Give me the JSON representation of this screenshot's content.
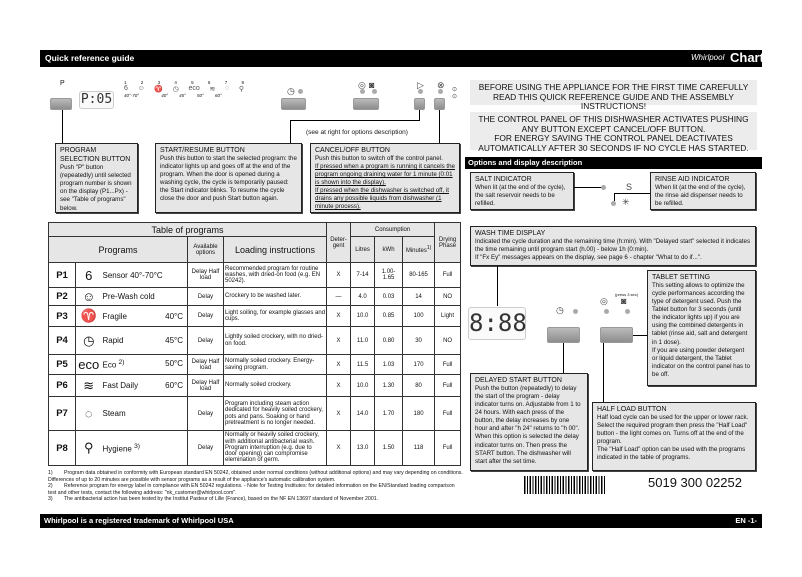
{
  "header": {
    "title": "Quick reference guide",
    "brand": "Whirlpool",
    "chart_label": "Chart"
  },
  "panel": {
    "p_label": "P",
    "display_left": "P:05",
    "program_numbers": [
      "1",
      "2",
      "3",
      "4",
      "5",
      "6",
      "7",
      "8"
    ],
    "temps": [
      "40°-70°",
      "",
      "40°",
      "45°",
      "50°",
      "60°",
      "",
      ""
    ],
    "see_right": "(see at right for options description)",
    "display_right": "8:88",
    "press_3sec": "(press 3 sec)"
  },
  "callouts": {
    "program_selection": {
      "title": "PROGRAM SELECTION BUTTON",
      "text": "Push \"P\" button (repeatedly) until selected program number is shown on the display (P1...Px) - see \"Table of programs\" below."
    },
    "start_resume": {
      "title": "START/RESUME BUTTON",
      "text": "Push this button to start the selected program: the indicator lights up and goes off at the end of the program. When the door is opened during a washing cycle, the cycle is temporarily paused: the Start indicator blinks. To resume the cycle close the door and push Start button again."
    },
    "cancel_off": {
      "title": "CANCEL/OFF BUTTON",
      "text": "Push this button to switch off the control panel.",
      "u1": "If pressed when a program is running it cancels the program ongoing draining water for 1 minute (0:01 is shown into the display).",
      "u2": "If pressed when the dishwasher is switched off, it drains any possible liquids from dishwasher (1 minute process)."
    }
  },
  "table": {
    "title": "Table of programs",
    "headers": {
      "programs": "Programs",
      "options": "Available options",
      "loading": "Loading instructions",
      "detergent": "Deter-gent",
      "consumption": "Consumption",
      "litres": "Litres",
      "kwh": "kWh",
      "minutes": "Minutes",
      "minutes_note": "1)",
      "drying": "Drying Phase"
    },
    "rows": [
      {
        "id": "P1",
        "icon": "sensor-6th-icon",
        "name": "Sensor 40°-70°C",
        "temp": "",
        "options": "Delay Half load",
        "loading": "Recommended program for routine washes, with dried-on food (e.g. EN 50242).",
        "detergent": "X",
        "litres": "7-14",
        "kwh": "1.00-1.65",
        "minutes": "80-165",
        "drying": "Full"
      },
      {
        "id": "P2",
        "icon": "prewash-icon",
        "name": "Pre-Wash cold",
        "temp": "",
        "options": "Delay",
        "loading": "Crockery to be washed later.",
        "detergent": "—",
        "litres": "4.0",
        "kwh": "0.03",
        "minutes": "14",
        "drying": "NO"
      },
      {
        "id": "P3",
        "icon": "glasses-icon",
        "name": "Fragile",
        "temp": "40°C",
        "options": "Delay",
        "loading": "Light soiling, for example glasses and cups.",
        "detergent": "X",
        "litres": "10.0",
        "kwh": "0.85",
        "minutes": "100",
        "drying": "Light"
      },
      {
        "id": "P4",
        "icon": "rapid-clock-icon",
        "name": "Rapid",
        "temp": "45°C",
        "options": "Delay",
        "loading": "Lightly soiled crockery, with no dried-on food.",
        "detergent": "X",
        "litres": "11.0",
        "kwh": "0.80",
        "minutes": "30",
        "drying": "NO"
      },
      {
        "id": "P5",
        "icon": "eco-icon",
        "name": "Eco",
        "name_note": "2)",
        "temp": "50°C",
        "options": "Delay Half load",
        "loading": "Normally soiled crockery. Energy-saving program.",
        "detergent": "X",
        "litres": "11.5",
        "kwh": "1.03",
        "minutes": "170",
        "drying": "Full"
      },
      {
        "id": "P6",
        "icon": "fast-daily-icon",
        "name": "Fast Daily",
        "temp": "60°C",
        "options": "Delay Half load",
        "loading": "Normally soiled crockery.",
        "detergent": "X",
        "litres": "10.0",
        "kwh": "1.30",
        "minutes": "80",
        "drying": "Full"
      },
      {
        "id": "P7",
        "icon": "steam-icon",
        "name": "Steam",
        "temp": "",
        "options": "Delay",
        "loading": "Program including steam action dedicated for heavily soiled crockery, pots and pans. Soaking or hand pretreatment is no longer needed.",
        "detergent": "X",
        "litres": "14.0",
        "kwh": "1.70",
        "minutes": "180",
        "drying": "Full"
      },
      {
        "id": "P8",
        "icon": "hygiene-icon",
        "name": "Hygiene",
        "name_note": "3)",
        "temp": "",
        "options": "Delay",
        "loading": "Normally or heavily soiled crockery, with additional antibacterial wash. Program interruption (e.g. due to door opening) can compromise elemination of germ.",
        "detergent": "X",
        "litres": "13.0",
        "kwh": "1.50",
        "minutes": "118",
        "drying": "Full"
      }
    ]
  },
  "footnotes": [
    {
      "n": "1)",
      "text": "Program data obtained in conformity with European standard EN 50242, obtained under normal conditions (without additional options) and may vary depending on conditions. Differences of up to 20 minutes are possible with sensor programs as a result of the appliance's automatic calibration system."
    },
    {
      "n": "2)",
      "text": "Reference program for energy label in compliance with EN 50242 regulations. - Note for Testing Institutes: for detailed information on the EN/Standard loading comparison test and other tests, contact the following address: \"nk_customer@whirlpool.com\"."
    },
    {
      "n": "3)",
      "text": "The antibacterial action has been tested by the Institut Pasteur of Lille (France), based on the NF EN 13697 standard of November 2001."
    }
  ],
  "notices": {
    "first": "BEFORE USING THE APPLIANCE FOR THE FIRST TIME CAREFULLY READ THIS QUICK REFERENCE GUIDE AND THE ASSEMBLY INSTRUCTIONS!",
    "second_a": "THE CONTROL PANEL OF THIS DISHWASHER ACTIVATES PUSHING ANY BUTTON EXCEPT CANCEL/OFF BUTTON.",
    "second_b": "FOR ENERGY SAVING THE CONTROL PANEL DEACTIVATES AUTOMATICALLY AFTER 30 SECONDS IF NO CYCLE HAS STARTED."
  },
  "options": {
    "title": "Options and display description",
    "salt": {
      "title": "SALT INDICATOR",
      "text": "When lit (at the end of the cycle), the salt reservoir needs to be refilled."
    },
    "rinse": {
      "title": "RINSE AID INDICATOR",
      "text": "When lit (at the end of the cycle), the rinse aid dispenser needs to be refilled."
    },
    "wash_time": {
      "title": "WASH TIME DISPLAY",
      "text": "Indicated the cycle duration and the remaining time (h:min). With \"Delayed start\" selected it indicates the time remaining until program start (h.00) - below 1h (0:min).",
      "text2": "If \"Fx Ey\" messages appears on the display, see page 6 - chapter \"What to do if...\"."
    },
    "tablet": {
      "title": "TABLET SETTING",
      "text": "This setting allows to optimize the cycle performances according the type of detergent used. Push the Tablet button for 3 seconds (until the indicator lights up) if you are using the combined detergents in tablet (rinse aid, salt and detergent in 1 dose).",
      "text2": "If you are using powder detergent or liquid detergent, the Tablet indicator on the control panel has to be off."
    },
    "delayed": {
      "title": "DELAYED START BUTTON",
      "text": "Push the button (repeatedly) to delay the start of the program - delay indicator turns on. Adjustable from 1 to 24 hours. With each press of the button, the delay increases by one hour and after \"h 24\" returns to \"h 00\". When this option is selected the delay indicator turns on. Then press the START button. The dishwasher will start after the set time."
    },
    "half_load": {
      "title": "HALF LOAD BUTTON",
      "text": "Half load cycle can be used for the upper or lower rack. Select the required program then press the \"Half Load\" button - the light comes on. Turns off at the end of the program.",
      "text2": "The \"Half Load\" option can be used with the programs indicated in the table of programs."
    }
  },
  "barcode": "5019 300 02252",
  "footer": {
    "trademark": "Whirlpool is a registered trademark of Whirlpool USA",
    "page": "EN -1-"
  }
}
